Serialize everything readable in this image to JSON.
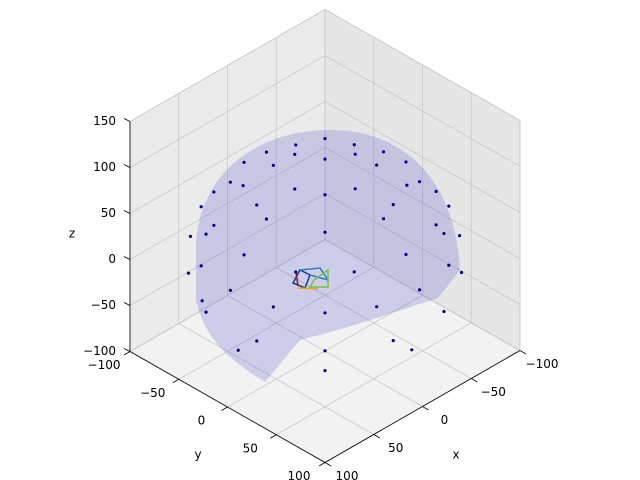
{
  "chart_data": {
    "type": "scatter3d",
    "xlabel": "x",
    "ylabel": "y",
    "zlabel": "z",
    "color": "#00008b",
    "surface_color": "#3c3cc8",
    "xlim": [
      -100,
      100
    ],
    "ylim": [
      -100,
      100
    ],
    "zlim": [
      -100,
      150
    ],
    "xticks": [
      {
        "value": -100,
        "label": "−100"
      },
      {
        "value": -50,
        "label": "−50"
      },
      0,
      50,
      100
    ],
    "yticks": [
      {
        "value": -100,
        "label": "−100"
      },
      {
        "value": -50,
        "label": "−50"
      },
      0,
      50,
      100
    ],
    "zticks": [
      {
        "value": -100,
        "label": "−100"
      },
      {
        "value": -50,
        "label": "−50"
      },
      0,
      50,
      100,
      150
    ],
    "x": [
      31,
      0,
      -31,
      0,
      60,
      42,
      0,
      -42,
      -60,
      -42,
      0,
      42,
      83,
      72,
      42,
      0,
      -42,
      -72,
      -83,
      -72,
      -42,
      0,
      42,
      72,
      97,
      90,
      69,
      37,
      0,
      -37,
      -69,
      -90,
      -97,
      -90,
      -69,
      -37,
      0,
      37,
      69,
      90,
      96,
      70,
      26,
      -26,
      -70,
      -96,
      -96,
      -70,
      -26,
      26,
      70,
      96,
      89,
      63,
      0,
      63
    ],
    "y": [
      0,
      31,
      0,
      -31,
      0,
      42,
      60,
      42,
      0,
      -42,
      -60,
      -42,
      0,
      42,
      72,
      83,
      72,
      42,
      0,
      -42,
      -72,
      -83,
      -72,
      -42,
      0,
      37,
      69,
      90,
      97,
      90,
      69,
      37,
      0,
      -37,
      -69,
      -90,
      -97,
      -90,
      -69,
      -37,
      26,
      70,
      96,
      96,
      70,
      26,
      -26,
      -70,
      -96,
      -96,
      -70,
      -26,
      0,
      63,
      89,
      -63
    ],
    "z": [
      95,
      95,
      95,
      95,
      80,
      80,
      80,
      80,
      80,
      80,
      80,
      80,
      55,
      55,
      55,
      55,
      55,
      55,
      55,
      55,
      55,
      55,
      55,
      55,
      25,
      25,
      25,
      25,
      25,
      25,
      25,
      25,
      25,
      25,
      25,
      25,
      25,
      25,
      25,
      25,
      -15,
      -15,
      -15,
      -15,
      -15,
      -15,
      -15,
      -15,
      -15,
      -15,
      -15,
      -15,
      -45,
      -45,
      -45,
      -45
    ]
  }
}
